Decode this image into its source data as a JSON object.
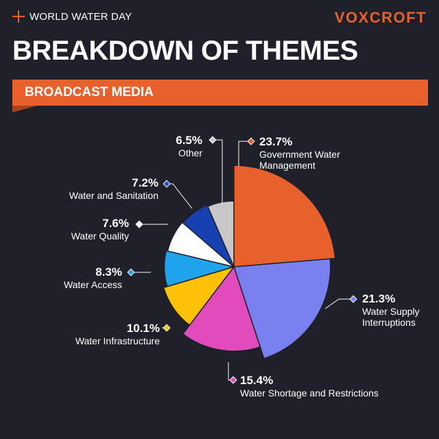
{
  "header": {
    "kicker": "WORLD WATER DAY",
    "brand": "VOXCROFT",
    "title": "BREAKDOWN OF THEMES",
    "banner": "BROADCAST MEDIA"
  },
  "colors": {
    "background": "#1f2029",
    "accent": "#e8612c"
  },
  "chart_data": {
    "type": "pie",
    "style": "radial-varying-radius",
    "start_angle_deg": 0,
    "direction": "clockwise",
    "slices": [
      {
        "label_lines": [
          "Government Water",
          "Management"
        ],
        "value": 23.7,
        "pct_text": "23.7%",
        "color": "#e8612c",
        "marker_color": "#e8612c"
      },
      {
        "label_lines": [
          "Water Supply",
          "Interruptions"
        ],
        "value": 21.3,
        "pct_text": "21.3%",
        "color": "#7b80f0",
        "marker_color": "#7b80f0"
      },
      {
        "label_lines": [
          "Water Shortage and Restrictions"
        ],
        "value": 15.4,
        "pct_text": "15.4%",
        "color": "#e14bbb",
        "marker_color": "#e14bbb"
      },
      {
        "label_lines": [
          "Water Infrastructure"
        ],
        "value": 10.1,
        "pct_text": "10.1%",
        "color": "#ffc107",
        "marker_color": "#ffc107"
      },
      {
        "label_lines": [
          "Water Access"
        ],
        "value": 8.3,
        "pct_text": "8.3%",
        "color": "#1ea3ec",
        "marker_color": "#1ea3ec"
      },
      {
        "label_lines": [
          "Water Quality"
        ],
        "value": 7.6,
        "pct_text": "7.6%",
        "color": "#ffffff",
        "marker_color": "#ffffff"
      },
      {
        "label_lines": [
          "Water and Sanitation"
        ],
        "value": 7.2,
        "pct_text": "7.2%",
        "color": "#1740b0",
        "marker_color": "#2a4fc9"
      },
      {
        "label_lines": [
          "Other"
        ],
        "value": 6.5,
        "pct_text": "6.5%",
        "color": "#c8c8c8",
        "marker_color": "#c8c8c8"
      }
    ]
  }
}
